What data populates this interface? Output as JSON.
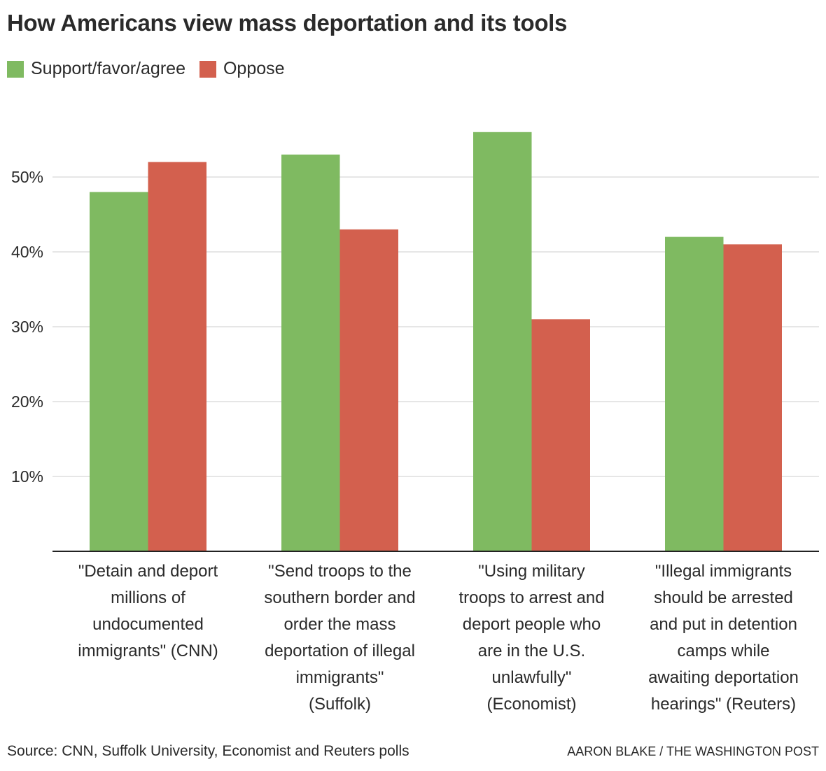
{
  "chart_data": {
    "type": "bar",
    "title": "How Americans view mass deportation and its tools",
    "xlabel": "",
    "ylabel": "",
    "ylim": [
      0,
      59
    ],
    "yticks": [
      10,
      20,
      30,
      40,
      50
    ],
    "ytick_labels": [
      "10%",
      "20%",
      "30%",
      "40%",
      "50%"
    ],
    "grid": true,
    "legend_position": "top-left",
    "categories": [
      "\"Detain and deport\nmillions of\nundocumented\nimmigrants\" (CNN)",
      "\"Send troops to the\nsouthern border and\norder the mass\ndeportation of illegal\nimmigrants\"\n(Suffolk)",
      "\"Using military\ntroops to arrest and\ndeport people who\nare in the U.S.\nunlawfully\"\n(Economist)",
      "\"Illegal immigrants\nshould be arrested\nand put in detention\ncamps while\nawaiting deportation\nhearings\" (Reuters)"
    ],
    "series": [
      {
        "name": "Support/favor/agree",
        "color": "#7fba61",
        "values": [
          48,
          53,
          56,
          42
        ]
      },
      {
        "name": "Oppose",
        "color": "#d3604e",
        "values": [
          52,
          43,
          31,
          41
        ]
      }
    ]
  },
  "source": "Source: CNN, Suffolk University, Economist and Reuters polls",
  "credit": "AARON BLAKE / THE WASHINGTON POST"
}
